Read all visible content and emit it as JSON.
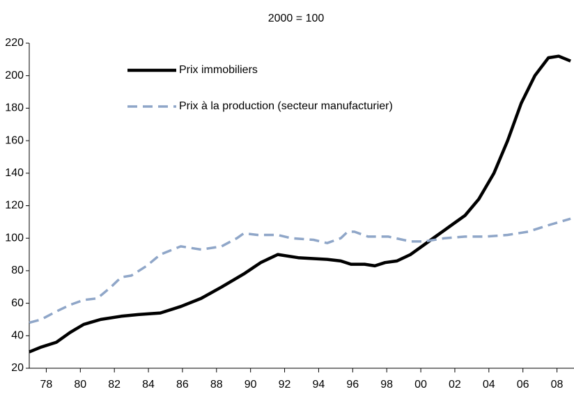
{
  "chart_data": {
    "type": "line",
    "title": "2000 = 100",
    "xlim": [
      1977,
      2009
    ],
    "xticks": [
      {
        "value": 1978,
        "label": "78"
      },
      {
        "value": 1980,
        "label": "80"
      },
      {
        "value": 1982,
        "label": "82"
      },
      {
        "value": 1984,
        "label": "84"
      },
      {
        "value": 1986,
        "label": "86"
      },
      {
        "value": 1988,
        "label": "88"
      },
      {
        "value": 1990,
        "label": "90"
      },
      {
        "value": 1992,
        "label": "92"
      },
      {
        "value": 1994,
        "label": "94"
      },
      {
        "value": 1996,
        "label": "96"
      },
      {
        "value": 1998,
        "label": "98"
      },
      {
        "value": 2000,
        "label": "00"
      },
      {
        "value": 2002,
        "label": "02"
      },
      {
        "value": 2004,
        "label": "04"
      },
      {
        "value": 2006,
        "label": "06"
      },
      {
        "value": 2008,
        "label": "08"
      }
    ],
    "ylim": [
      20,
      220
    ],
    "yticks": [
      20,
      40,
      60,
      80,
      100,
      120,
      140,
      160,
      180,
      200,
      220
    ],
    "grid": false,
    "series": [
      {
        "name": "Prix immobiliers",
        "color": "#000000",
        "style": "solid",
        "x": [
          1977.0,
          1977.7,
          1978.6,
          1979.4,
          1980.2,
          1981.2,
          1982.4,
          1983.4,
          1984.7,
          1985.9,
          1987.1,
          1988.3,
          1989.6,
          1990.6,
          1991.6,
          1992.8,
          1994.5,
          1995.3,
          1995.9,
          1996.7,
          1997.3,
          1997.9,
          1998.6,
          1999.4,
          2000.2,
          2001.0,
          2001.8,
          2002.6,
          2003.4,
          2004.3,
          2005.1,
          2005.9,
          2006.7,
          2007.5,
          2008.1,
          2008.8
        ],
        "values": [
          30,
          33,
          36,
          42,
          47,
          50,
          52,
          53,
          54,
          58,
          63,
          70,
          78,
          85,
          90,
          88,
          87,
          86,
          84,
          84,
          83,
          85,
          86,
          90,
          96,
          102,
          108,
          114,
          124,
          140,
          160,
          183,
          200,
          211,
          212,
          209
        ]
      },
      {
        "name": "Prix à la production (secteur manufacturier)",
        "color": "#8fa6c8",
        "style": "dashed",
        "x": [
          1977.0,
          1977.7,
          1978.6,
          1979.4,
          1980.2,
          1981.0,
          1981.8,
          1982.4,
          1983.0,
          1983.9,
          1984.7,
          1985.9,
          1987.1,
          1988.3,
          1989.2,
          1989.6,
          1990.4,
          1991.6,
          1992.4,
          1993.7,
          1994.5,
          1995.3,
          1995.7,
          1996.1,
          1996.9,
          1998.1,
          1999.4,
          2000.2,
          2001.4,
          2002.6,
          2003.8,
          2005.1,
          2006.3,
          2007.5,
          2008.8
        ],
        "values": [
          48,
          50,
          55,
          59,
          62,
          63,
          70,
          76,
          77,
          83,
          90,
          95,
          93,
          95,
          100,
          103,
          102,
          102,
          100,
          99,
          97,
          100,
          104,
          104,
          101,
          101,
          98,
          98,
          100,
          101,
          101,
          102,
          104,
          108,
          112
        ]
      }
    ]
  }
}
